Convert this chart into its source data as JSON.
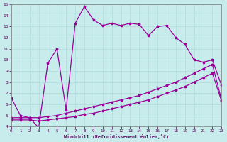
{
  "xlabel": "Windchill (Refroidissement éolien,°C)",
  "xlim": [
    0,
    23
  ],
  "ylim": [
    4,
    15
  ],
  "yticks": [
    4,
    5,
    6,
    7,
    8,
    9,
    10,
    11,
    12,
    13,
    14,
    15
  ],
  "xticks": [
    0,
    1,
    2,
    3,
    4,
    5,
    6,
    7,
    8,
    9,
    10,
    11,
    12,
    13,
    14,
    15,
    16,
    17,
    18,
    19,
    20,
    21,
    22,
    23
  ],
  "bg_color": "#c8ecec",
  "line_color": "#990099",
  "grid_color": "#b0dcdc",
  "upper_x": [
    0,
    1,
    2,
    3,
    4,
    5,
    6,
    7,
    8,
    9,
    10,
    11,
    12,
    13,
    14,
    15,
    16,
    17,
    18,
    19,
    20,
    21,
    22,
    23
  ],
  "upper_y": [
    6.6,
    5.0,
    4.8,
    3.9,
    9.7,
    11.0,
    5.5,
    13.3,
    14.8,
    13.6,
    13.1,
    13.3,
    13.1,
    13.3,
    13.2,
    12.2,
    13.0,
    13.1,
    12.0,
    11.4,
    10.0,
    9.8,
    10.0,
    7.7
  ],
  "mid_x": [
    0,
    1,
    2,
    3,
    4,
    5,
    6,
    7,
    8,
    9,
    10,
    11,
    12,
    13,
    14,
    15,
    16,
    17,
    18,
    19,
    20,
    21,
    22,
    23
  ],
  "mid_y": [
    4.8,
    4.8,
    4.8,
    4.8,
    4.9,
    5.0,
    5.2,
    5.4,
    5.6,
    5.8,
    6.0,
    6.2,
    6.4,
    6.6,
    6.8,
    7.1,
    7.4,
    7.7,
    8.0,
    8.4,
    8.8,
    9.2,
    9.6,
    6.4
  ],
  "low_x": [
    0,
    1,
    2,
    3,
    4,
    5,
    6,
    7,
    8,
    9,
    10,
    11,
    12,
    13,
    14,
    15,
    16,
    17,
    18,
    19,
    20,
    21,
    22,
    23
  ],
  "low_y": [
    4.6,
    4.6,
    4.6,
    4.5,
    4.6,
    4.7,
    4.8,
    4.9,
    5.1,
    5.2,
    5.4,
    5.6,
    5.8,
    6.0,
    6.2,
    6.4,
    6.7,
    7.0,
    7.3,
    7.6,
    8.0,
    8.4,
    8.8,
    6.3
  ]
}
